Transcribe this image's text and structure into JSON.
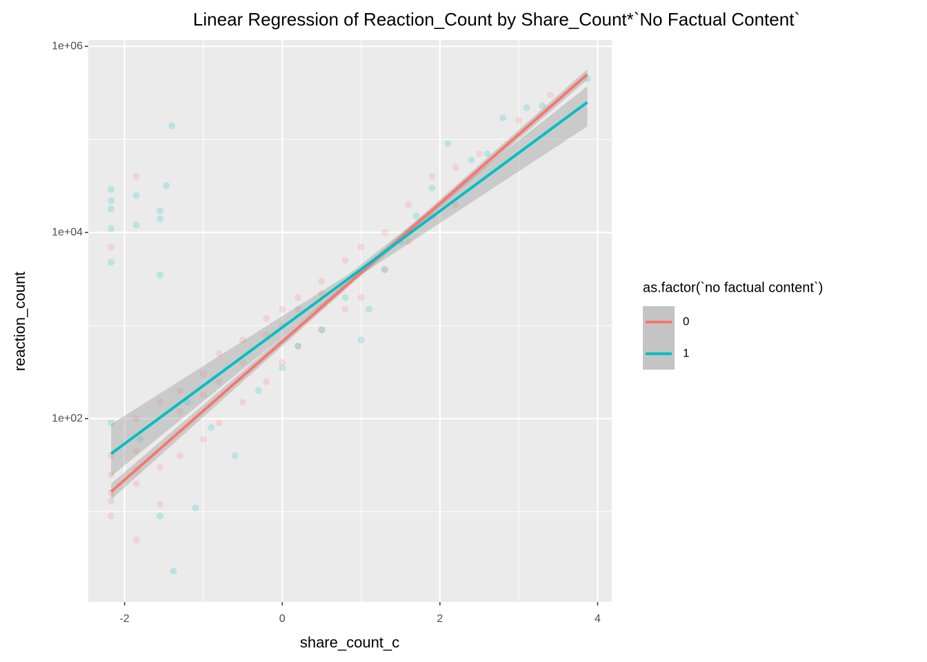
{
  "chart_data": {
    "type": "scatter",
    "title": "Linear Regression of Reaction_Count by Share_Count*`No Factual Content`",
    "x_label": "share_count_c",
    "y_label": "reaction_count",
    "legend_title": "as.factor(`no factual content`)",
    "log_y": true,
    "grid": true,
    "band_color": "#999999",
    "xlim": [
      -2.46,
      4.18
    ],
    "xticks": [
      -2,
      0,
      2,
      4
    ],
    "minor_xticks": [
      -1,
      1,
      3
    ],
    "ylim": [
      1.07,
      1170000
    ],
    "yticks": [
      {
        "value": 100,
        "label": "1e+02"
      },
      {
        "value": 10000,
        "label": "1e+04"
      },
      {
        "value": 1000000,
        "label": "1e+06"
      }
    ],
    "minor_yticks": [
      10,
      1000,
      100000
    ],
    "series": [
      {
        "name": "0",
        "color": "#F8766D",
        "x": [
          -2.17,
          -2.17,
          -2.17,
          -2.17,
          -2.17,
          -2.17,
          -1.85,
          -1.85,
          -1.85,
          -1.85,
          -1.85,
          -1.55,
          -1.55,
          -1.55,
          -1.3,
          -1.3,
          -1.3,
          -1.0,
          -1.0,
          -1.0,
          -0.8,
          -0.8,
          -0.8,
          -0.5,
          -0.5,
          -0.5,
          -0.2,
          -0.2,
          -0.2,
          0.0,
          0.0,
          0.0,
          0.2,
          0.2,
          0.2,
          0.5,
          0.5,
          0.5,
          0.8,
          0.8,
          1.0,
          1.0,
          1.3,
          1.3,
          1.6,
          1.6,
          1.9,
          1.9,
          2.2,
          2.2,
          2.5,
          3.0,
          3.4,
          -1.85
        ],
        "values": [
          40,
          13,
          9,
          25,
          7000,
          16,
          45,
          5,
          20,
          100,
          28,
          30,
          12,
          150,
          120,
          40,
          200,
          300,
          60,
          180,
          500,
          90,
          250,
          700,
          150,
          400,
          1200,
          250,
          800,
          1500,
          400,
          1000,
          2000,
          600,
          1500,
          3000,
          900,
          2200,
          5000,
          1500,
          7000,
          2000,
          10000,
          4000,
          20000,
          8000,
          40000,
          15000,
          50000,
          20000,
          70000,
          160000,
          300000,
          40000
        ],
        "fit": {
          "x": [
            -2.17,
            0.85,
            3.87
          ],
          "values": [
            16.4,
            2870,
            500000
          ],
          "lower": [
            13.5,
            2650,
            440000
          ],
          "upper": [
            20,
            3100,
            570000
          ]
        }
      },
      {
        "name": "1",
        "color": "#00BFC4",
        "x": [
          -2.17,
          -2.17,
          -2.17,
          -2.17,
          -2.17,
          -1.85,
          -1.85,
          -1.55,
          -1.55,
          -1.47,
          -1.4,
          -1.55,
          -1.38,
          -1.55,
          -1.1,
          3.1,
          3.3,
          2.1,
          3.87,
          2.8,
          1.0,
          0.5,
          -0.6,
          -0.3,
          1.9,
          2.4,
          1.7,
          0.8,
          1.3,
          -1.2,
          -0.9,
          0.2,
          2.6,
          1.5,
          -2.17,
          -1.8,
          0.0,
          1.1
        ],
        "values": [
          29000,
          22000,
          18000,
          11000,
          4800,
          25000,
          12000,
          17000,
          14000,
          32000,
          140000,
          3500,
          2.3,
          9,
          11,
          220000,
          230000,
          90000,
          450000,
          170000,
          700,
          900,
          40,
          200,
          30000,
          60000,
          15000,
          2000,
          4000,
          150,
          80,
          600,
          70000,
          8000,
          90,
          60,
          350,
          1500
        ],
        "fit": {
          "x": [
            -2.17,
            0.85,
            3.87
          ],
          "values": [
            42,
            3240,
            251000
          ],
          "lower": [
            24,
            2900,
            138000
          ],
          "upper": [
            87,
            3600,
            372000
          ]
        }
      }
    ]
  }
}
